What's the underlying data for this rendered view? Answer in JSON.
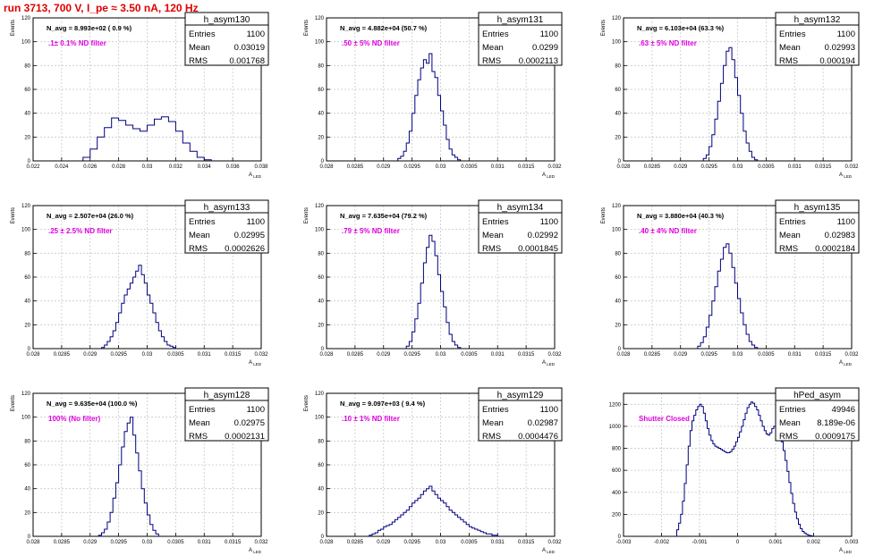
{
  "run_title": "run 3713,   700 V, I_pe ≈ 3.50 nA, 120 Hz",
  "stats_labels": {
    "entries": "Entries",
    "mean": "Mean",
    "rms": "RMS"
  },
  "colors": {
    "hist": "#000080",
    "annotation": "#e000e0",
    "title": "#e00000",
    "grid": "#c8c8c8"
  },
  "chart_data": [
    {
      "type": "histogram",
      "name": "h_asym130",
      "navg": "N_avg = 8.993e+02 ( 0.9 %)",
      "filter": ".1± 0.1% ND filter",
      "entries": "1100",
      "mean": "0.03019",
      "rms": "0.001768",
      "xlabel": "A_LED",
      "ylabel": "Events",
      "xlim": [
        0.022,
        0.038
      ],
      "xticks": [
        "0.022",
        "0.024",
        "0.026",
        "0.028",
        "0.03",
        "0.032",
        "0.034",
        "0.036",
        "0.038"
      ],
      "ylim": [
        0,
        120
      ],
      "yticks": [
        "0",
        "20",
        "40",
        "60",
        "80",
        "100",
        "120"
      ],
      "bin_edges": [
        0.0255,
        0.026,
        0.0265,
        0.027,
        0.0275,
        0.028,
        0.0285,
        0.029,
        0.0295,
        0.03,
        0.0305,
        0.031,
        0.0315,
        0.032,
        0.0325,
        0.033,
        0.0335,
        0.034,
        0.0345
      ],
      "counts": [
        3,
        10,
        20,
        28,
        36,
        34,
        30,
        27,
        25,
        30,
        35,
        37,
        33,
        25,
        15,
        8,
        3,
        1
      ]
    },
    {
      "type": "histogram",
      "name": "h_asym131",
      "navg": "N_avg = 4.882e+04 (50.7 %)",
      "filter": ".50 ± 5% ND filter",
      "entries": "1100",
      "mean": "0.0299",
      "rms": "0.0002113",
      "xlabel": "A_LED",
      "ylabel": "Events",
      "xlim": [
        0.028,
        0.032
      ],
      "xticks": [
        "0.028",
        "0.0285",
        "0.029",
        "0.0295",
        "0.03",
        "0.0305",
        "0.031",
        "0.0315",
        "0.032"
      ],
      "ylim": [
        0,
        120
      ],
      "yticks": [
        "0",
        "20",
        "40",
        "60",
        "80",
        "100",
        "120"
      ],
      "bin_edges": [
        0.02925,
        0.0293,
        0.02935,
        0.0294,
        0.02945,
        0.0295,
        0.02955,
        0.0296,
        0.02965,
        0.0297,
        0.02975,
        0.0298,
        0.02985,
        0.0299,
        0.02995,
        0.03,
        0.03005,
        0.0301,
        0.03015,
        0.0302,
        0.03025,
        0.0303,
        0.03035
      ],
      "counts": [
        2,
        4,
        8,
        15,
        25,
        40,
        55,
        68,
        78,
        85,
        82,
        90,
        75,
        70,
        55,
        42,
        30,
        18,
        10,
        5,
        3,
        1
      ]
    },
    {
      "type": "histogram",
      "name": "h_asym132",
      "navg": "N_avg = 6.103e+04 (63.3 %)",
      "filter": ".63 ± 5% ND filter",
      "entries": "1100",
      "mean": "0.02993",
      "rms": "0.000194",
      "xlabel": "A_LED",
      "ylabel": "Events",
      "xlim": [
        0.028,
        0.032
      ],
      "xticks": [
        "0.028",
        "0.0285",
        "0.029",
        "0.0295",
        "0.03",
        "0.0305",
        "0.031",
        "0.0315",
        "0.032"
      ],
      "ylim": [
        0,
        120
      ],
      "yticks": [
        "0",
        "20",
        "40",
        "60",
        "80",
        "100",
        "120"
      ],
      "bin_edges": [
        0.0294,
        0.02945,
        0.0295,
        0.02955,
        0.0296,
        0.02965,
        0.0297,
        0.02975,
        0.0298,
        0.02985,
        0.0299,
        0.02995,
        0.03,
        0.03005,
        0.0301,
        0.03015,
        0.0302,
        0.03025,
        0.0303,
        0.03035
      ],
      "counts": [
        2,
        5,
        12,
        22,
        35,
        50,
        65,
        80,
        92,
        95,
        85,
        70,
        55,
        40,
        25,
        15,
        8,
        3,
        1
      ]
    },
    {
      "type": "histogram",
      "name": "h_asym133",
      "navg": "N_avg = 2.507e+04 (26.0 %)",
      "filter": ".25 ± 2.5% ND filter",
      "entries": "1100",
      "mean": "0.02995",
      "rms": "0.0002626",
      "xlabel": "A_LED",
      "ylabel": "Events",
      "xlim": [
        0.028,
        0.032
      ],
      "xticks": [
        "0.028",
        "0.0285",
        "0.029",
        "0.0295",
        "0.03",
        "0.0305",
        "0.031",
        "0.0315",
        "0.032"
      ],
      "ylim": [
        0,
        120
      ],
      "yticks": [
        "0",
        "20",
        "40",
        "60",
        "80",
        "100",
        "120"
      ],
      "bin_edges": [
        0.0292,
        0.02925,
        0.0293,
        0.02935,
        0.0294,
        0.02945,
        0.0295,
        0.02955,
        0.0296,
        0.02965,
        0.0297,
        0.02975,
        0.0298,
        0.02985,
        0.0299,
        0.02995,
        0.03,
        0.03005,
        0.0301,
        0.03015,
        0.0302,
        0.03025,
        0.0303,
        0.03035,
        0.0304,
        0.03045,
        0.0305
      ],
      "counts": [
        1,
        3,
        6,
        10,
        15,
        22,
        30,
        38,
        45,
        50,
        55,
        60,
        65,
        70,
        62,
        55,
        45,
        38,
        30,
        22,
        15,
        10,
        6,
        3,
        2,
        1
      ]
    },
    {
      "type": "histogram",
      "name": "h_asym134",
      "navg": "N_avg = 7.635e+04 (79.2 %)",
      "filter": ".79 ± 5% ND filter",
      "entries": "1100",
      "mean": "0.02992",
      "rms": "0.0001845",
      "xlabel": "A_LED",
      "ylabel": "Events",
      "xlim": [
        0.028,
        0.032
      ],
      "xticks": [
        "0.028",
        "0.0285",
        "0.029",
        "0.0295",
        "0.03",
        "0.0305",
        "0.031",
        "0.0315",
        "0.032"
      ],
      "ylim": [
        0,
        120
      ],
      "yticks": [
        "0",
        "20",
        "40",
        "60",
        "80",
        "100",
        "120"
      ],
      "bin_edges": [
        0.0294,
        0.02945,
        0.0295,
        0.02955,
        0.0296,
        0.02965,
        0.0297,
        0.02975,
        0.0298,
        0.02985,
        0.0299,
        0.02995,
        0.03,
        0.03005,
        0.0301,
        0.03015,
        0.0302,
        0.03025,
        0.0303,
        0.03035
      ],
      "counts": [
        2,
        6,
        14,
        25,
        38,
        55,
        72,
        85,
        95,
        90,
        78,
        62,
        48,
        35,
        22,
        12,
        6,
        3,
        1
      ]
    },
    {
      "type": "histogram",
      "name": "h_asym135",
      "navg": "N_avg = 3.880e+04 (40.3 %)",
      "filter": ".40 ± 4% ND filter",
      "entries": "1100",
      "mean": "0.02983",
      "rms": "0.0002184",
      "xlabel": "A_LED",
      "ylabel": "Events",
      "xlim": [
        0.028,
        0.032
      ],
      "xticks": [
        "0.028",
        "0.0285",
        "0.029",
        "0.0295",
        "0.03",
        "0.0305",
        "0.031",
        "0.0315",
        "0.032"
      ],
      "ylim": [
        0,
        120
      ],
      "yticks": [
        "0",
        "20",
        "40",
        "60",
        "80",
        "100",
        "120"
      ],
      "bin_edges": [
        0.0293,
        0.02935,
        0.0294,
        0.02945,
        0.0295,
        0.02955,
        0.0296,
        0.02965,
        0.0297,
        0.02975,
        0.0298,
        0.02985,
        0.0299,
        0.02995,
        0.03,
        0.03005,
        0.0301,
        0.03015,
        0.0302,
        0.03025,
        0.0303,
        0.03035
      ],
      "counts": [
        2,
        5,
        10,
        18,
        28,
        40,
        52,
        65,
        75,
        85,
        88,
        80,
        68,
        55,
        42,
        30,
        20,
        12,
        6,
        3,
        1
      ]
    },
    {
      "type": "histogram",
      "name": "h_asym128",
      "navg": "N_avg = 9.635e+04 (100.0 %)",
      "filter": "100% (No filter)",
      "entries": "1100",
      "mean": "0.02975",
      "rms": "0.0002131",
      "xlabel": "A_LED",
      "ylabel": "Events",
      "xlim": [
        0.028,
        0.032
      ],
      "xticks": [
        "0.028",
        "0.0285",
        "0.029",
        "0.0295",
        "0.03",
        "0.0305",
        "0.031",
        "0.0315",
        "0.032"
      ],
      "ylim": [
        0,
        120
      ],
      "yticks": [
        "0",
        "20",
        "40",
        "60",
        "80",
        "100",
        "120"
      ],
      "bin_edges": [
        0.02915,
        0.0292,
        0.02925,
        0.0293,
        0.02935,
        0.0294,
        0.02945,
        0.0295,
        0.02955,
        0.0296,
        0.02965,
        0.0297,
        0.02975,
        0.0298,
        0.02985,
        0.0299,
        0.02995,
        0.03,
        0.03005,
        0.0301,
        0.03015,
        0.0302
      ],
      "counts": [
        1,
        3,
        6,
        12,
        20,
        32,
        45,
        60,
        75,
        88,
        95,
        100,
        85,
        70,
        55,
        40,
        28,
        18,
        10,
        5,
        2
      ]
    },
    {
      "type": "histogram",
      "name": "h_asym129",
      "navg": "N_avg = 9.097e+03 ( 9.4 %)",
      "filter": ".10 ± 1% ND filter",
      "entries": "1100",
      "mean": "0.02987",
      "rms": "0.0004476",
      "xlabel": "A_LED",
      "ylabel": "Events",
      "xlim": [
        0.028,
        0.032
      ],
      "xticks": [
        "0.028",
        "0.0285",
        "0.029",
        "0.0295",
        "0.03",
        "0.0305",
        "0.031",
        "0.0315",
        "0.032"
      ],
      "ylim": [
        0,
        120
      ],
      "yticks": [
        "0",
        "20",
        "40",
        "60",
        "80",
        "100",
        "120"
      ],
      "bin_edges": [
        0.02875,
        0.0288,
        0.02885,
        0.0289,
        0.02895,
        0.029,
        0.02905,
        0.0291,
        0.02915,
        0.0292,
        0.02925,
        0.0293,
        0.02935,
        0.0294,
        0.02945,
        0.0295,
        0.02955,
        0.0296,
        0.02965,
        0.0297,
        0.02975,
        0.0298,
        0.02985,
        0.0299,
        0.02995,
        0.03,
        0.03005,
        0.0301,
        0.03015,
        0.0302,
        0.03025,
        0.0303,
        0.03035,
        0.0304,
        0.03045,
        0.0305,
        0.03055,
        0.0306,
        0.03065,
        0.0307,
        0.03075,
        0.0308,
        0.03085,
        0.0309,
        0.03095,
        0.031
      ],
      "counts": [
        1,
        2,
        3,
        5,
        6,
        8,
        9,
        10,
        12,
        14,
        16,
        18,
        20,
        22,
        25,
        28,
        30,
        32,
        35,
        38,
        40,
        42,
        38,
        35,
        32,
        30,
        28,
        25,
        22,
        20,
        18,
        16,
        14,
        12,
        10,
        8,
        7,
        6,
        5,
        4,
        3,
        2,
        2,
        1,
        1
      ]
    },
    {
      "type": "histogram",
      "name": "hPed_asym",
      "navg": "",
      "filter": "Shutter Closed",
      "entries": "49946",
      "mean": "8.189e-06",
      "rms": "0.0009175",
      "xlabel": "A_LED",
      "ylabel": "",
      "xlim": [
        -0.003,
        0.003
      ],
      "xticks": [
        "-0.003",
        "-0.002",
        "-0.001",
        "0",
        "0.001",
        "0.002",
        "0.003"
      ],
      "ylim": [
        0,
        1300
      ],
      "yticks": [
        "0",
        "200",
        "400",
        "600",
        "800",
        "1000",
        "1200"
      ],
      "bin_edges": [
        -0.0016,
        -0.00155,
        -0.0015,
        -0.00145,
        -0.0014,
        -0.00135,
        -0.0013,
        -0.00125,
        -0.0012,
        -0.00115,
        -0.0011,
        -0.00105,
        -0.001,
        -0.00095,
        -0.0009,
        -0.00085,
        -0.0008,
        -0.00075,
        -0.0007,
        -0.00065,
        -0.0006,
        -0.00055,
        -0.0005,
        -0.00045,
        -0.0004,
        -0.00035,
        -0.0003,
        -0.00025,
        -0.0002,
        -0.00015,
        -0.0001,
        -5e-05,
        0,
        5e-05,
        0.0001,
        0.00015,
        0.0002,
        0.00025,
        0.0003,
        0.00035,
        0.0004,
        0.00045,
        0.0005,
        0.00055,
        0.0006,
        0.00065,
        0.0007,
        0.00075,
        0.0008,
        0.00085,
        0.0009,
        0.00095,
        0.001,
        0.00105,
        0.0011,
        0.00115,
        0.0012,
        0.00125,
        0.0013,
        0.00135,
        0.0014,
        0.00145,
        0.0015,
        0.00155,
        0.0016,
        0.00165,
        0.0017,
        0.00175,
        0.0018,
        0.00185,
        0.0019,
        0.00195,
        0.002
      ],
      "counts": [
        60,
        120,
        200,
        320,
        480,
        650,
        820,
        960,
        1050,
        1100,
        1150,
        1180,
        1200,
        1180,
        1120,
        1050,
        980,
        920,
        870,
        840,
        820,
        810,
        800,
        790,
        780,
        770,
        760,
        760,
        770,
        790,
        820,
        860,
        900,
        950,
        1000,
        1060,
        1120,
        1170,
        1200,
        1220,
        1210,
        1180,
        1150,
        1100,
        1050,
        1000,
        960,
        930,
        920,
        940,
        980,
        1000,
        1020,
        980,
        930,
        860,
        780,
        690,
        590,
        490,
        390,
        300,
        220,
        160,
        110,
        70,
        45,
        30,
        18,
        10,
        6,
        3
      ]
    }
  ]
}
